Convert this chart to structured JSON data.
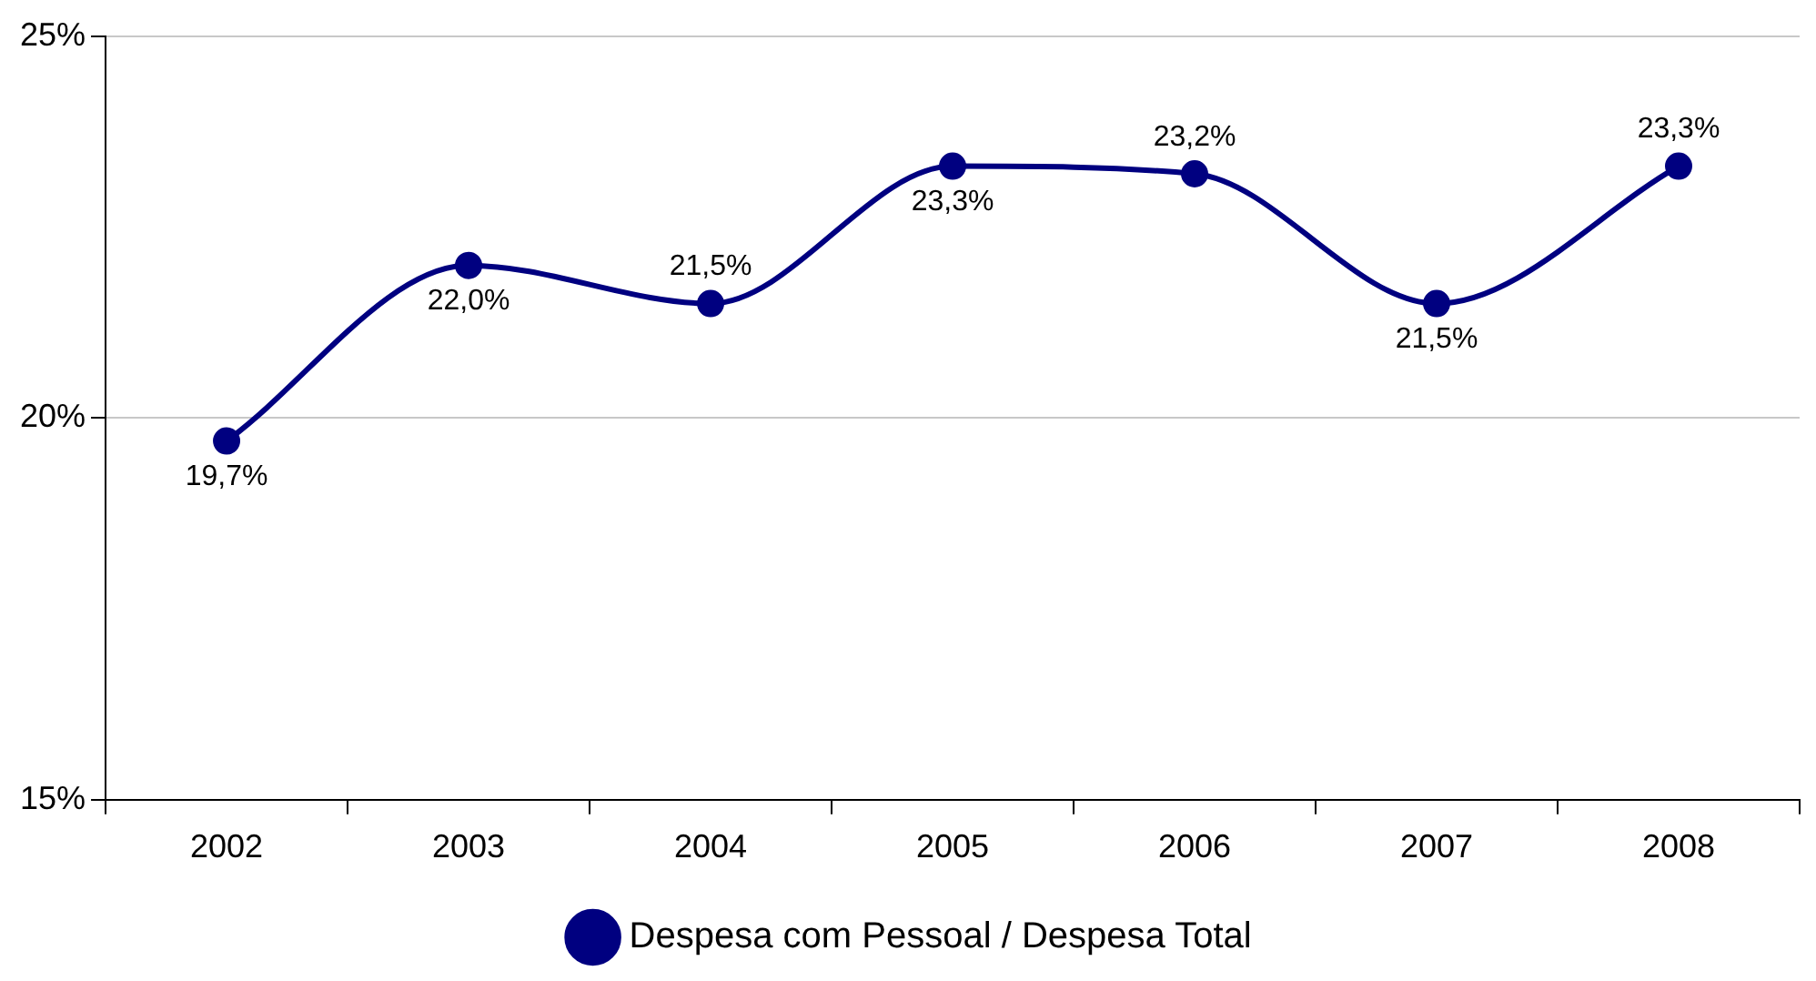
{
  "chart_data": {
    "type": "line",
    "categories": [
      "2002",
      "2003",
      "2004",
      "2005",
      "2006",
      "2007",
      "2008"
    ],
    "series": [
      {
        "name": "Despesa com Pessoal / Despesa Total",
        "color": "#000080",
        "values": [
          19.7,
          22.0,
          21.5,
          23.3,
          23.2,
          21.5,
          23.3
        ],
        "value_labels": [
          "19,7%",
          "22,0%",
          "21,5%",
          "23,3%",
          "23,2%",
          "21,5%",
          "23,3%"
        ]
      }
    ],
    "ylim": [
      15,
      25
    ],
    "yticks": [
      {
        "value": 15,
        "label": "15%"
      },
      {
        "value": 20,
        "label": "20%"
      },
      {
        "value": 25,
        "label": "25%"
      }
    ],
    "grid": "y",
    "legend": "bottom",
    "marker": "circle",
    "line_style": "solid"
  }
}
